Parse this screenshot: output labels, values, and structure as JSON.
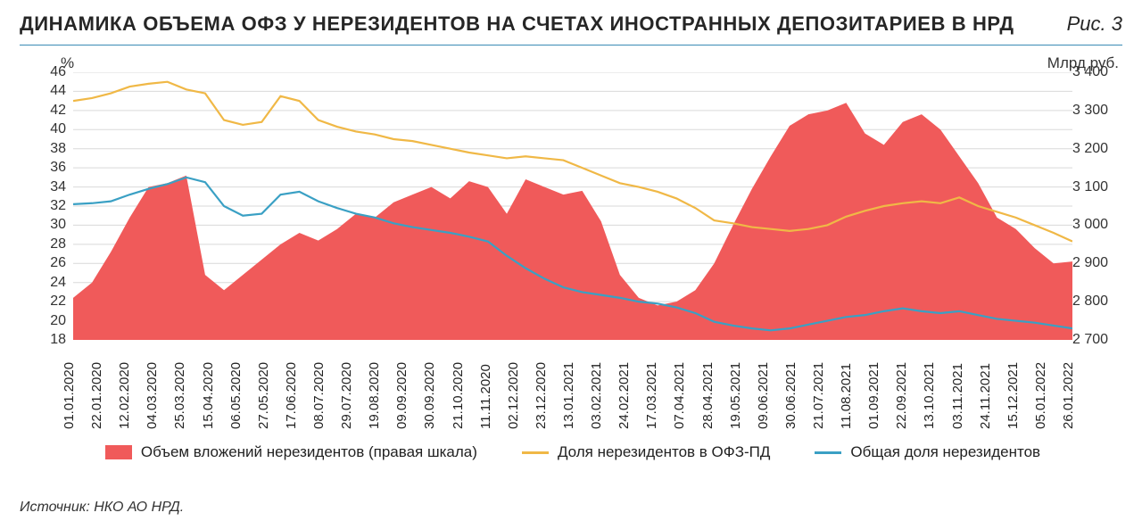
{
  "header": {
    "title": "ДИНАМИКА ОБЪЕМА ОФЗ У НЕРЕЗИДЕНТОВ НА СЧЕТАХ ИНОСТРАННЫХ ДЕПОЗИТАРИЕВ В НРД",
    "figure_label": "Рис. 3"
  },
  "chart": {
    "type": "dual-axis-area-line",
    "background_color": "#ffffff",
    "grid_color": "#d9d9d9",
    "left_axis": {
      "label": "%",
      "min": 18,
      "max": 46,
      "tick_step": 2,
      "ticks": [
        18,
        20,
        22,
        24,
        26,
        28,
        30,
        32,
        34,
        36,
        38,
        40,
        42,
        44,
        46
      ],
      "fontsize": 16
    },
    "right_axis": {
      "label": "Млрд руб.",
      "min": 2700,
      "max": 3400,
      "tick_step": 100,
      "ticks": [
        2700,
        2800,
        2900,
        3000,
        3100,
        3200,
        3300,
        3400
      ],
      "fontsize": 16
    },
    "x_axis": {
      "labels": [
        "01.01.2020",
        "22.01.2020",
        "12.02.2020",
        "04.03.2020",
        "25.03.2020",
        "15.04.2020",
        "06.05.2020",
        "27.05.2020",
        "17.06.2020",
        "08.07.2020",
        "29.07.2020",
        "19.08.2020",
        "09.09.2020",
        "30.09.2020",
        "21.10.2020",
        "11.11.2020",
        "02.12.2020",
        "23.12.2020",
        "13.01.2021",
        "03.02.2021",
        "24.02.2021",
        "17.03.2021",
        "07.04.2021",
        "28.04.2021",
        "19.05.2021",
        "09.06.2021",
        "30.06.2021",
        "21.07.2021",
        "11.08.2021",
        "01.09.2021",
        "22.09.2021",
        "13.10.2021",
        "03.11.2021",
        "24.11.2021",
        "15.12.2021",
        "05.01.2022",
        "26.01.2022"
      ],
      "rotation": -90,
      "fontsize": 15
    },
    "series": {
      "area_volume": {
        "label": "Объем вложений нерезидентов (правая шкала)",
        "axis": "right",
        "color": "#f05a5a",
        "type": "area",
        "values": [
          2810,
          2850,
          2930,
          3020,
          3100,
          3110,
          3130,
          2870,
          2830,
          2870,
          2910,
          2950,
          2980,
          2960,
          2990,
          3030,
          3020,
          3060,
          3080,
          3100,
          3070,
          3115,
          3100,
          3030,
          3120,
          3100,
          3080,
          3090,
          3010,
          2870,
          2810,
          2790,
          2800,
          2830,
          2900,
          3000,
          3095,
          3180,
          3260,
          3290,
          3300,
          3320,
          3240,
          3210,
          3270,
          3290,
          3250,
          3180,
          3110,
          3020,
          2990,
          2940,
          2900,
          2905
        ]
      },
      "line_pd": {
        "label": "Доля нерезидентов в ОФЗ-ПД",
        "axis": "left",
        "color": "#f0b846",
        "type": "line",
        "line_width": 2.2,
        "values": [
          43.0,
          43.3,
          43.8,
          44.5,
          44.8,
          45.0,
          44.2,
          43.8,
          41.0,
          40.5,
          40.8,
          43.5,
          43.0,
          41.0,
          40.3,
          39.8,
          39.5,
          39.0,
          38.8,
          38.4,
          38.0,
          37.6,
          37.3,
          37.0,
          37.2,
          37.0,
          36.8,
          36.0,
          35.2,
          34.4,
          34.0,
          33.5,
          32.8,
          31.8,
          30.5,
          30.2,
          29.8,
          29.6,
          29.4,
          29.6,
          30.0,
          30.9,
          31.5,
          32.0,
          32.3,
          32.5,
          32.3,
          32.9,
          32.0,
          31.4,
          30.8,
          30.0,
          29.2,
          28.3
        ]
      },
      "line_total": {
        "label": "Общая доля нерезидентов",
        "axis": "left",
        "color": "#3aa0c4",
        "type": "line",
        "line_width": 2.2,
        "values": [
          32.2,
          32.3,
          32.5,
          33.2,
          33.8,
          34.3,
          35.0,
          34.5,
          32.0,
          31.0,
          31.2,
          33.2,
          33.5,
          32.5,
          31.8,
          31.2,
          30.8,
          30.2,
          29.8,
          29.5,
          29.2,
          28.8,
          28.3,
          26.8,
          25.5,
          24.4,
          23.5,
          23.0,
          22.7,
          22.4,
          22.0,
          21.8,
          21.4,
          20.8,
          19.9,
          19.5,
          19.2,
          19.0,
          19.2,
          19.6,
          20.0,
          20.4,
          20.6,
          21.0,
          21.3,
          21.0,
          20.8,
          21.0,
          20.6,
          20.2,
          20.0,
          19.8,
          19.5,
          19.2
        ]
      }
    },
    "legend": {
      "position": "bottom-center",
      "fontsize": 17
    }
  },
  "source": "Источник: НКО АО НРД."
}
